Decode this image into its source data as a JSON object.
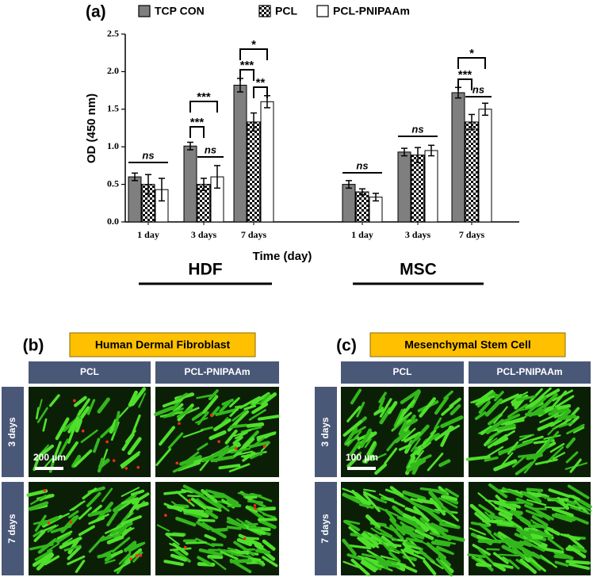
{
  "chart_data": {
    "type": "bar",
    "panel_label": "(a)",
    "ylabel": "OD (450 nm)",
    "xlabel": "Time (day)",
    "categories": [
      "1 day",
      "3 days",
      "7 days",
      "1 day",
      "3 days",
      "7 days"
    ],
    "groups": [
      "HDF",
      "MSC"
    ],
    "series": [
      {
        "name": "TCP CON",
        "color": "#7f7f7f",
        "values": [
          0.6,
          1.01,
          1.82,
          0.5,
          0.93,
          1.72
        ],
        "errors": [
          0.05,
          0.05,
          0.09,
          0.05,
          0.05,
          0.07
        ]
      },
      {
        "name": "PCL",
        "color": "#000000",
        "pattern": "checker",
        "values": [
          0.5,
          0.5,
          1.33,
          0.4,
          0.89,
          1.33
        ],
        "errors": [
          0.13,
          0.08,
          0.12,
          0.04,
          0.1,
          0.1
        ]
      },
      {
        "name": "PCL-PNIPAAm",
        "color": "#ffffff",
        "values": [
          0.43,
          0.6,
          1.6,
          0.33,
          0.95,
          1.5
        ],
        "errors": [
          0.15,
          0.15,
          0.08,
          0.05,
          0.07,
          0.08
        ]
      }
    ],
    "ylim": [
      0,
      2.5
    ],
    "yticks": [
      {
        "value": 0,
        "label": "0.0"
      },
      0.5,
      {
        "value": 1,
        "label": "1.0"
      },
      1.5,
      {
        "value": 2,
        "label": "2.0"
      },
      2.5
    ],
    "annotations": [
      "ns",
      "***",
      "***",
      "ns",
      "*",
      "***",
      "**",
      "ns",
      "ns",
      "*",
      "***",
      "ns"
    ]
  },
  "panels": [
    {
      "label": "(b)",
      "title": "Human Dermal Fibroblast",
      "columns": [
        "PCL",
        "PCL-PNIPAAm"
      ],
      "rows": [
        "3 days",
        "7 days"
      ],
      "scale_bar": "200 µm"
    },
    {
      "label": "(c)",
      "title": "Mesenchymal Stem Cell",
      "columns": [
        "PCL",
        "PCL-PNIPAAm"
      ],
      "rows": [
        "3 days",
        "7 days"
      ],
      "scale_bar": "100 µm"
    }
  ]
}
